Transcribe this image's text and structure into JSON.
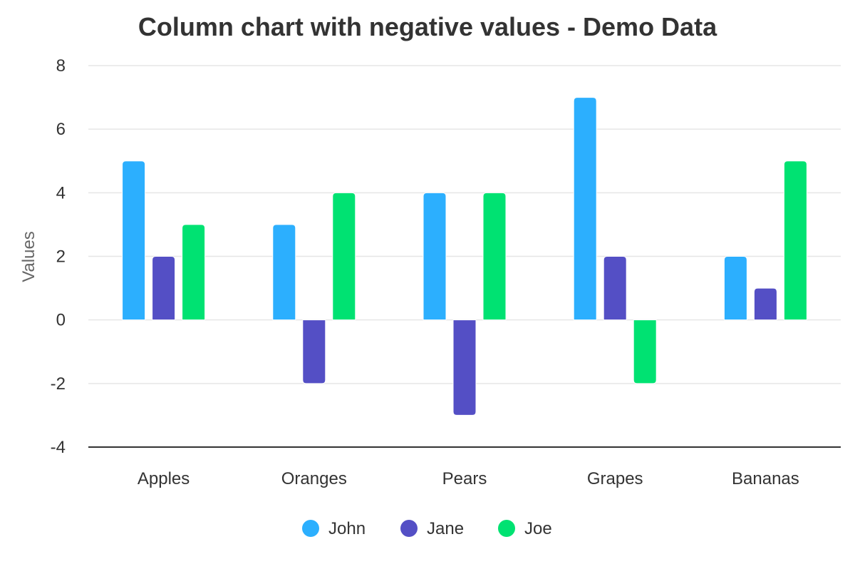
{
  "chart_data": {
    "type": "bar",
    "title": "Column chart with negative values - Demo Data",
    "xlabel": "",
    "ylabel": "Values",
    "ylim": [
      -4,
      8
    ],
    "yticks": [
      8,
      6,
      4,
      2,
      0,
      -2,
      -4
    ],
    "grid": true,
    "legend_position": "bottom",
    "categories": [
      "Apples",
      "Oranges",
      "Pears",
      "Grapes",
      "Bananas"
    ],
    "series": [
      {
        "name": "John",
        "color": "#2caffe",
        "values": [
          5,
          3,
          4,
          7,
          2
        ]
      },
      {
        "name": "Jane",
        "color": "#544fc5",
        "values": [
          2,
          -2,
          -3,
          2,
          1
        ]
      },
      {
        "name": "Joe",
        "color": "#00e272",
        "values": [
          3,
          4,
          4,
          -2,
          5
        ]
      }
    ]
  }
}
